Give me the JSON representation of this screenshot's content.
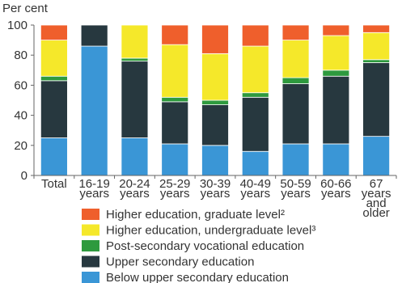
{
  "chart_data": {
    "type": "bar",
    "stacked": true,
    "ylabel": "Per cent",
    "ylim": [
      0,
      100
    ],
    "yticks": [
      0,
      20,
      40,
      60,
      80,
      100
    ],
    "grid": false,
    "legend_position": "bottom",
    "categories": [
      [
        "Total"
      ],
      [
        "16-19",
        "years"
      ],
      [
        "20-24",
        "years"
      ],
      [
        "25-29",
        "years"
      ],
      [
        "30-39",
        "years"
      ],
      [
        "40-49",
        "years"
      ],
      [
        "50-59",
        "years"
      ],
      [
        "60-66",
        "years"
      ],
      [
        "67",
        "years",
        "and",
        "older"
      ]
    ],
    "series": [
      {
        "name": "Below upper secondary education",
        "color": "#3a96d6",
        "values": [
          25,
          86,
          25,
          21,
          20,
          16,
          21,
          21,
          26
        ]
      },
      {
        "name": "Upper secondary education",
        "color": "#27383f",
        "values": [
          38,
          14,
          51,
          28,
          27,
          36,
          40,
          45,
          49
        ]
      },
      {
        "name": "Post-secondary vocational education",
        "color": "#2e9a3e",
        "values": [
          3,
          0,
          2,
          3,
          3,
          3,
          4,
          4,
          2
        ]
      },
      {
        "name": "Higher education, undergraduate level³",
        "color": "#f5e82a",
        "values": [
          24,
          0,
          22,
          35,
          31,
          31,
          25,
          23,
          18
        ]
      },
      {
        "name": "Higher education, graduate level²",
        "color": "#ef5f2c",
        "values": [
          10,
          0,
          0,
          13,
          19,
          14,
          10,
          7,
          5
        ]
      }
    ],
    "legend_order": [
      4,
      3,
      2,
      1,
      0
    ]
  }
}
